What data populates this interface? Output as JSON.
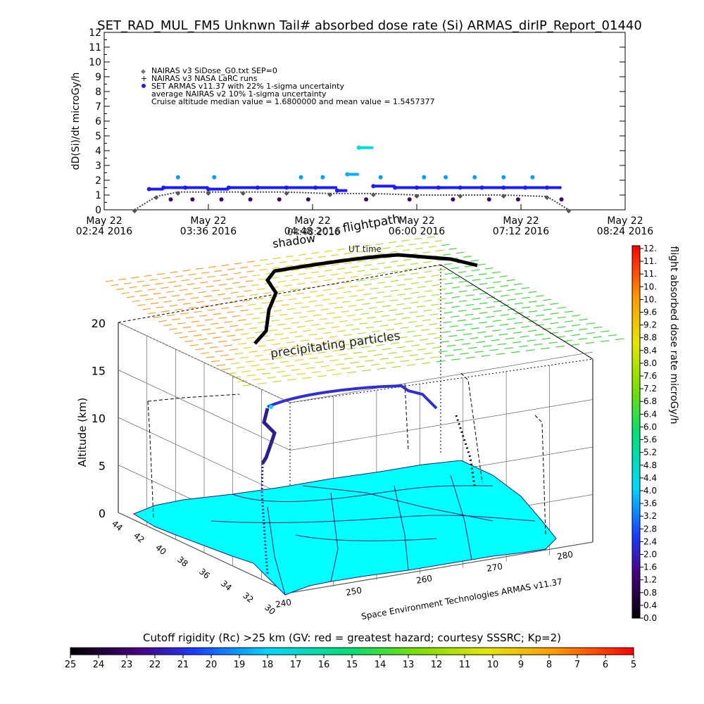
{
  "title": "SET_RAD_MUL_FM5 Unknwn Tail#  absorbed dose rate (Si) ARMAS_dirIP_Report_01440",
  "chart_data": [
    {
      "type": "scatter",
      "name": "dose-rate-time-series",
      "ylabel": "dD(Si)/dt microGy/h",
      "ylim": [
        0,
        12
      ],
      "y_ticks": [
        "0",
        "1",
        "2",
        "3",
        "4",
        "5",
        "6",
        "7",
        "8",
        "9",
        "10",
        "11",
        "12"
      ],
      "x_ticks": [
        {
          "date": "May 22",
          "time": "02:24 2016"
        },
        {
          "date": "May 22",
          "time": "03:36 2016"
        },
        {
          "date": "May 22",
          "time": "04:48 2016"
        },
        {
          "date": "May 22",
          "time": "06:00 2016"
        },
        {
          "date": "May 22",
          "time": "07:12 2016"
        },
        {
          "date": "May 22",
          "time": "08:24 2016"
        }
      ],
      "xlim": [
        "2016-05-22 02:24",
        "2016-05-22 08:24"
      ],
      "legend": [
        "NAIRAS v3 SiDose_G0.txt SEP=0",
        "NAIRAS v3 NASA LaRC runs",
        "SET ARMAS v11.37 with 22% 1-sigma uncertainty",
        "average NAIRAS v2 10% 1-sigma uncertainty",
        "Cruise altitude median value = 1.6800000 and mean value = 1.5457377"
      ],
      "cruise_median": 1.68,
      "cruise_mean": 1.5457377,
      "armas_levels": [
        0.7,
        1.5,
        2.2,
        4.2
      ],
      "series": [
        {
          "name": "SET ARMAS v11.37",
          "x": [
            "02:55",
            "03:05",
            "03:20",
            "03:36",
            "03:50",
            "04:10",
            "04:30",
            "04:50",
            "05:05",
            "05:12",
            "05:20",
            "05:30",
            "05:45",
            "06:00",
            "06:15",
            "06:30",
            "06:45",
            "07:00",
            "07:15",
            "07:30",
            "07:40"
          ],
          "y": [
            1.4,
            1.5,
            1.5,
            1.4,
            1.5,
            1.5,
            1.5,
            1.5,
            1.3,
            2.4,
            4.2,
            1.6,
            1.5,
            1.5,
            1.5,
            1.5,
            1.5,
            1.5,
            1.5,
            1.5,
            0.7
          ]
        },
        {
          "name": "NAIRAS v3 SiDose_G0.txt SEP=0",
          "x": [
            "02:45",
            "03:00",
            "03:15",
            "03:36",
            "04:00",
            "04:30",
            "05:00",
            "05:30",
            "06:00",
            "06:30",
            "07:00",
            "07:30",
            "07:45"
          ],
          "y": [
            0.0,
            0.9,
            1.2,
            1.2,
            1.2,
            1.2,
            1.1,
            1.1,
            1.0,
            1.0,
            1.0,
            0.9,
            0.0
          ]
        }
      ]
    },
    {
      "type": "heatmap",
      "name": "3d-flight-track",
      "ylabel": "Altitude (km)",
      "z_ticks": [
        "0",
        "5",
        "10",
        "15",
        "20"
      ],
      "lat_ticks": [
        "44",
        "42",
        "40",
        "38",
        "36",
        "34",
        "32",
        "30"
      ],
      "lon_ticks": [
        "240",
        "250",
        "260",
        "270",
        "280"
      ],
      "labels": {
        "flightpath": "flightpath",
        "shadow": "shadow",
        "ut_time": "UT time",
        "ut_time_val": "04:48:2016",
        "precipitating": "precipitating particles",
        "credit": "Space Environment Technologies ARMAS v11.37"
      }
    },
    {
      "type": "colorbar",
      "name": "dose-colorbar",
      "label": "flight absorbed dose rate microGy/h",
      "ticks": [
        "12.",
        "11.",
        "11.",
        "10.",
        "10.",
        "9.6",
        "9.2",
        "8.8",
        "8.4",
        "8.0",
        "7.6",
        "7.2",
        "6.8",
        "6.4",
        "6.0",
        "5.6",
        "5.2",
        "4.8",
        "4.4",
        "4.0",
        "3.6",
        "3.2",
        "2.8",
        "2.4",
        "2.0",
        "1.6",
        "1.2",
        "0.8",
        "0.4",
        "0.0"
      ]
    },
    {
      "type": "colorbar",
      "name": "cutoff-colorbar",
      "label": "Cutoff rigidity (Rc) >25 km (GV: red = greatest hazard; courtesy SSSRC; Kp=2)",
      "ticks": [
        "25",
        "24",
        "23",
        "22",
        "21",
        "20",
        "19",
        "18",
        "17",
        "16",
        "15",
        "14",
        "13",
        "12",
        "11",
        "10",
        "9",
        "8",
        "7",
        "6",
        "5"
      ]
    }
  ]
}
